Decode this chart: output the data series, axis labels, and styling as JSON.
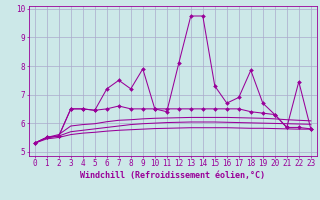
{
  "x": [
    0,
    1,
    2,
    3,
    4,
    5,
    6,
    7,
    8,
    9,
    10,
    11,
    12,
    13,
    14,
    15,
    16,
    17,
    18,
    19,
    20,
    21,
    22,
    23
  ],
  "line1": [
    5.3,
    5.5,
    5.55,
    6.5,
    6.5,
    6.45,
    7.2,
    7.5,
    7.2,
    7.9,
    6.5,
    6.4,
    8.1,
    9.75,
    9.75,
    7.3,
    6.7,
    6.9,
    7.85,
    6.7,
    6.3,
    5.85,
    7.45,
    5.8
  ],
  "line2": [
    5.3,
    5.5,
    5.55,
    6.5,
    6.5,
    6.45,
    6.5,
    6.6,
    6.5,
    6.5,
    6.5,
    6.5,
    6.5,
    6.5,
    6.5,
    6.5,
    6.5,
    6.5,
    6.4,
    6.35,
    6.3,
    5.85,
    5.85,
    5.8
  ],
  "line3": [
    5.3,
    5.5,
    5.6,
    5.9,
    5.95,
    5.98,
    6.05,
    6.1,
    6.12,
    6.15,
    6.17,
    6.18,
    6.19,
    6.2,
    6.2,
    6.2,
    6.2,
    6.19,
    6.18,
    6.17,
    6.15,
    6.12,
    6.1,
    6.08
  ],
  "line4": [
    5.3,
    5.5,
    5.55,
    5.7,
    5.75,
    5.8,
    5.85,
    5.9,
    5.95,
    5.98,
    6.0,
    6.02,
    6.03,
    6.04,
    6.04,
    6.04,
    6.03,
    6.02,
    6.01,
    6.0,
    5.99,
    5.98,
    5.97,
    5.96
  ],
  "line5": [
    5.3,
    5.45,
    5.5,
    5.6,
    5.65,
    5.68,
    5.72,
    5.75,
    5.77,
    5.79,
    5.81,
    5.82,
    5.83,
    5.84,
    5.84,
    5.84,
    5.84,
    5.83,
    5.82,
    5.82,
    5.81,
    5.8,
    5.79,
    5.79
  ],
  "line_color": "#990099",
  "bg_color": "#cce8e8",
  "grid_color": "#aaaacc",
  "ylim": [
    4.85,
    10.1
  ],
  "yticks": [
    5,
    6,
    7,
    8,
    9,
    10
  ],
  "xlim": [
    -0.5,
    23.5
  ],
  "xticks": [
    0,
    1,
    2,
    3,
    4,
    5,
    6,
    7,
    8,
    9,
    10,
    11,
    12,
    13,
    14,
    15,
    16,
    17,
    18,
    19,
    20,
    21,
    22,
    23
  ],
  "xlabel": "Windchill (Refroidissement éolien,°C)",
  "xlabel_fontsize": 6.0,
  "tick_fontsize": 5.5,
  "marker": "D",
  "markersize": 2.0,
  "linewidth": 0.75
}
